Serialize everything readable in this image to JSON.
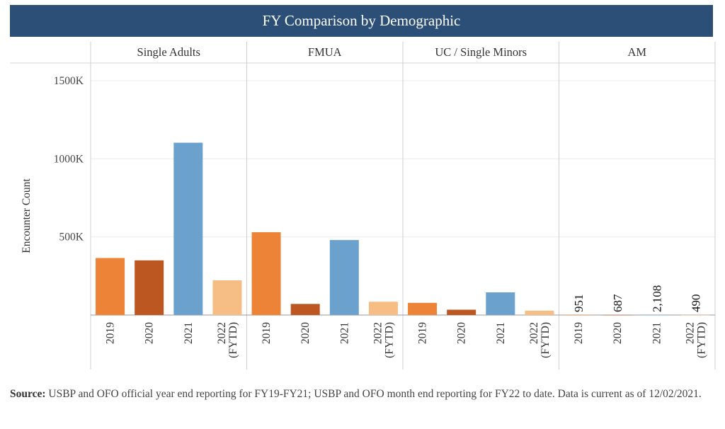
{
  "title": "FY Comparison by Demographic",
  "source": {
    "label": "Source:",
    "text": "USBP and OFO official year end reporting for FY19-FY21; USBP and OFO month end reporting for FY22 to date. Data is current as of 12/02/2021."
  },
  "chart_data": {
    "type": "bar",
    "title": "FY Comparison by Demographic",
    "ylabel": "Encounter Count",
    "ylim": [
      0,
      1500000
    ],
    "yticks": [
      {
        "value": 500000,
        "label": "500K"
      },
      {
        "value": 1000000,
        "label": "1000K"
      },
      {
        "value": 1500000,
        "label": "1500K"
      }
    ],
    "grid": true,
    "panels": [
      {
        "name": "Single Adults",
        "categories": [
          "2019",
          "2020",
          "2021",
          "2022 (FYTD)"
        ],
        "values": [
          365000,
          350000,
          1103000,
          222000
        ]
      },
      {
        "name": "FMUA",
        "categories": [
          "2019",
          "2020",
          "2021",
          "2022 (FYTD)"
        ],
        "values": [
          530000,
          71000,
          480000,
          85000
        ]
      },
      {
        "name": "UC / Single Minors",
        "categories": [
          "2019",
          "2020",
          "2021",
          "2022 (FYTD)"
        ],
        "values": [
          78000,
          34000,
          145000,
          28000
        ]
      },
      {
        "name": "AM",
        "categories": [
          "2019",
          "2020",
          "2021",
          "2022 (FYTD)"
        ],
        "values": [
          951,
          687,
          2108,
          490
        ],
        "data_labels": [
          "951",
          "687",
          "2,108",
          "490"
        ]
      }
    ],
    "category_colors": [
      "#ec8336",
      "#bc5722",
      "#6ba2cd",
      "#f6bd85"
    ]
  }
}
